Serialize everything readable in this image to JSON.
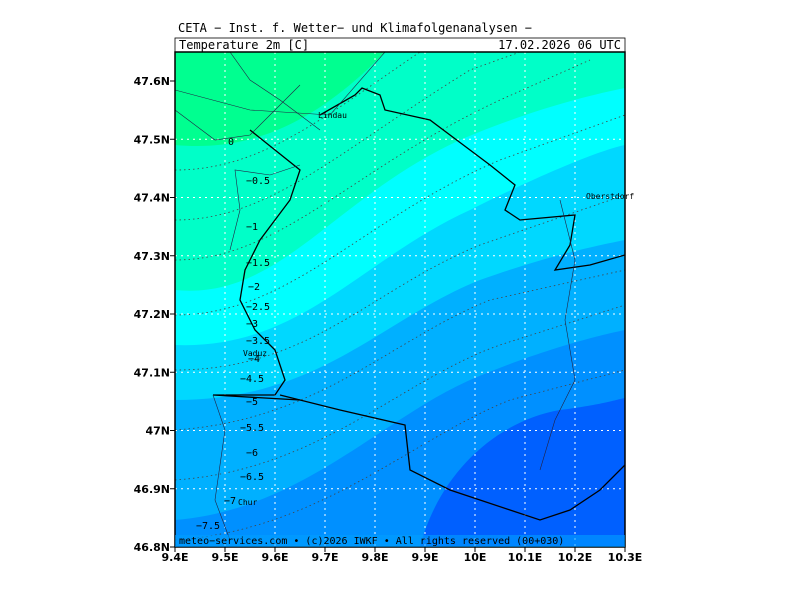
{
  "header": {
    "title": "CETA − Inst. f. Wetter− und Klimafolgenanalysen −",
    "variable": "Temperature 2m [C]",
    "valid_time": "17.02.2026 06 UTC"
  },
  "footer": "meteo−services.com • (c)2026 IWKF • All rights reserved (00+030)",
  "axes": {
    "lat_ticks": [
      "47.6N",
      "47.5N",
      "47.4N",
      "47.3N",
      "47.2N",
      "47.1N",
      "47N",
      "46.9N",
      "46.8N"
    ],
    "lon_ticks": [
      "9.4E",
      "9.5E",
      "9.6E",
      "9.7E",
      "9.8E",
      "9.9E",
      "10E",
      "10.1E",
      "10.2E",
      "10.3E"
    ]
  },
  "contour_labels": [
    "0",
    "−0.5",
    "−1",
    "−1.5",
    "−2",
    "−2.5",
    "−3",
    "−3.5",
    "−4",
    "−4.5",
    "−5",
    "−5.5",
    "−6",
    "−6.5",
    "−7",
    "−7.5"
  ],
  "places": [
    "Lindau",
    "Oberstdorf",
    "Vaduz",
    "Chur"
  ]
}
